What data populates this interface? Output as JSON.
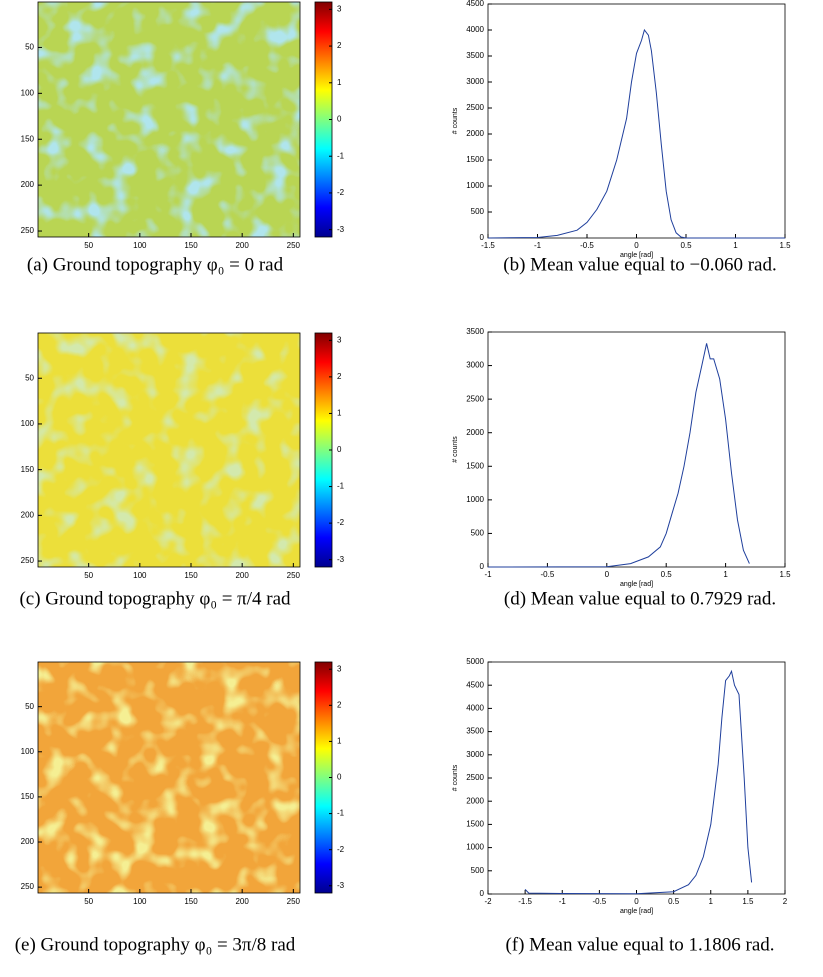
{
  "chart_data": [
    {
      "type": "heatmap",
      "caption": "(a) Ground topography φ₀ = 0 rad",
      "colormap": "jet",
      "field_colors": [
        "#b9d553",
        "#6ec8d8"
      ],
      "xlim": [
        0.5,
        256.5
      ],
      "ylim": [
        0.5,
        256.5
      ],
      "xticks": [
        50,
        100,
        150,
        200,
        250
      ],
      "yticks": [
        50,
        100,
        150,
        200,
        250
      ],
      "clim": [
        -3.2,
        3.2
      ],
      "cticks": [
        -3,
        -2,
        -1,
        0,
        1,
        2,
        3
      ]
    },
    {
      "type": "line",
      "caption": "(b) Mean value equal to −0.060 rad.",
      "xlabel": "angle [rad]",
      "ylabel": "# counts",
      "color": "#1f3f9c",
      "x": [
        -1.5,
        -1,
        -0.8,
        -0.6,
        -0.5,
        -0.4,
        -0.3,
        -0.2,
        -0.1,
        -0.05,
        0,
        0.05,
        0.08,
        0.12,
        0.15,
        0.2,
        0.25,
        0.3,
        0.35,
        0.4,
        0.45,
        0.5,
        1,
        1.5
      ],
      "values": [
        0,
        10,
        50,
        150,
        300,
        550,
        900,
        1500,
        2300,
        3000,
        3550,
        3800,
        4000,
        3900,
        3600,
        2800,
        1800,
        900,
        350,
        100,
        20,
        0,
        0,
        0
      ],
      "xlim": [
        -1.5,
        1.5
      ],
      "xticks": [
        -1.5,
        -1,
        -0.5,
        0,
        0.5,
        1,
        1.5
      ],
      "ylim": [
        0,
        4500
      ],
      "yticks": [
        0,
        500,
        1000,
        1500,
        2000,
        2500,
        3000,
        3500,
        4000,
        4500
      ]
    },
    {
      "type": "heatmap",
      "caption": "(c) Ground topography φ₀ = π/4 rad",
      "colormap": "jet",
      "field_colors": [
        "#ecdf3a",
        "#a6d06a"
      ],
      "xlim": [
        0.5,
        256.5
      ],
      "ylim": [
        0.5,
        256.5
      ],
      "xticks": [
        50,
        100,
        150,
        200,
        250
      ],
      "yticks": [
        50,
        100,
        150,
        200,
        250
      ],
      "clim": [
        -3.2,
        3.2
      ],
      "cticks": [
        -3,
        -2,
        -1,
        0,
        1,
        2,
        3
      ]
    },
    {
      "type": "line",
      "caption": "(d) Mean value equal to 0.7929 rad.",
      "xlabel": "angle [rad]",
      "ylabel": "# counts",
      "color": "#1f3f9c",
      "x": [
        -1,
        0,
        0.2,
        0.35,
        0.45,
        0.5,
        0.55,
        0.6,
        0.65,
        0.7,
        0.75,
        0.8,
        0.84,
        0.87,
        0.9,
        0.95,
        1,
        1.05,
        1.1,
        1.15,
        1.2
      ],
      "values": [
        0,
        5,
        50,
        150,
        300,
        500,
        800,
        1100,
        1500,
        2000,
        2600,
        3000,
        3330,
        3100,
        3100,
        2800,
        2200,
        1400,
        700,
        250,
        50
      ],
      "xlim": [
        -1,
        1.5
      ],
      "xticks": [
        -1,
        -0.5,
        0,
        0.5,
        1,
        1.5
      ],
      "ylim": [
        0,
        3500
      ],
      "yticks": [
        0,
        500,
        1000,
        1500,
        2000,
        2500,
        3000,
        3500
      ]
    },
    {
      "type": "heatmap",
      "caption": "(e) Ground topography φ₀ = 3π/8 rad",
      "colormap": "jet",
      "field_colors": [
        "#f2a53a",
        "#e8dc4a"
      ],
      "xlim": [
        0.5,
        256.5
      ],
      "ylim": [
        0.5,
        256.5
      ],
      "xticks": [
        50,
        100,
        150,
        200,
        250
      ],
      "yticks": [
        50,
        100,
        150,
        200,
        250
      ],
      "clim": [
        -3.2,
        3.2
      ],
      "cticks": [
        -3,
        -2,
        -1,
        0,
        1,
        2,
        3
      ]
    },
    {
      "type": "line",
      "caption": "(f) Mean value equal to 1.1806 rad.",
      "xlabel": "angle [rad]",
      "ylabel": "# counts",
      "color": "#1f3f9c",
      "x": [
        -1.5,
        -1.45,
        -1,
        0,
        0.5,
        0.7,
        0.8,
        0.9,
        1,
        1.1,
        1.15,
        1.2,
        1.25,
        1.28,
        1.32,
        1.38,
        1.45,
        1.5,
        1.55
      ],
      "values": [
        100,
        20,
        10,
        5,
        50,
        200,
        400,
        800,
        1500,
        2800,
        3800,
        4600,
        4700,
        4800,
        4500,
        4300,
        2500,
        1000,
        250
      ],
      "xlim": [
        -2,
        2
      ],
      "xticks": [
        -2,
        -1.5,
        -1,
        -0.5,
        0,
        0.5,
        1,
        1.5,
        2
      ],
      "ylim": [
        0,
        5000
      ],
      "yticks": [
        0,
        500,
        1000,
        1500,
        2000,
        2500,
        3000,
        3500,
        4000,
        4500,
        5000
      ]
    }
  ]
}
